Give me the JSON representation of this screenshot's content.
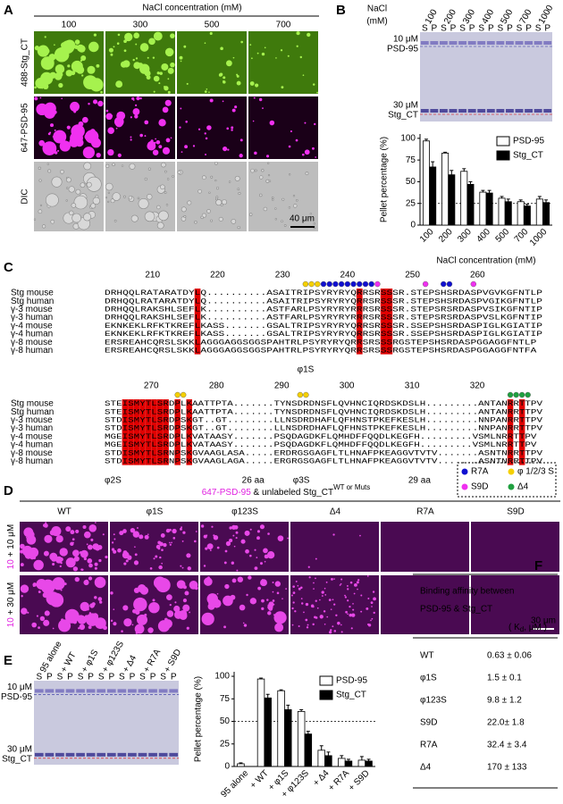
{
  "panel_a": {
    "letter": "A",
    "header": "NaCl concentration (mM)",
    "columns": [
      "100",
      "300",
      "500",
      "700"
    ],
    "rows": [
      "488-Stg_CT",
      "647-PSD-95",
      "DIC"
    ],
    "scale_bar": "40 μm"
  },
  "panel_b": {
    "letter": "B",
    "gel_header": [
      "NaCl",
      "(mM)"
    ],
    "lanes": [
      "100",
      "200",
      "300",
      "400",
      "500",
      "700",
      "1000"
    ],
    "lane_sub": [
      "S",
      "P"
    ],
    "band_top": [
      "10 μM",
      "PSD-95"
    ],
    "band_bottom": [
      "30 μM",
      "Stg_CT"
    ]
  },
  "panel_c": {
    "letter": "C",
    "blocks": [
      {
        "ruler": [
          "210",
          "220",
          "230",
          "240",
          "250",
          "260"
        ],
        "names": [
          "Stg mouse",
          "Stg human",
          "γ-3 mouse",
          "γ-3 human",
          "γ-4 mouse",
          "γ-4 human",
          "γ-8 mouse",
          "γ-8 human"
        ],
        "sequences": [
          "DRHQQLRATARATDYLQ..........ASAITRIPSYRYRYQRRSRSSSR.STEPSHSRDASPVGVKGFNTLP",
          "DRHQQLRATARATDYLQ..........ASAITRIPSYRYRYQRRSRSSSR.STEPSHSRDASPVGIKGFNTLP",
          "DRHQQLRAKSHLSEFLK..........ASTFARLPSYRYRYRRRSRSSSR.STEPSRSRDASPVSIKGFNTIP",
          "DRHQQLRAKSHLSEFLK..........ASTFARLPSYRYRYRRRSRSSSR.STEPSRSRDASPVSLKGFNTIP",
          "EKNKEKLRFKTKREFLKASS.......GSALTRIPSYRYRYQRRSRSSSR.SSEPSHSRDASPIGLKGIATIP",
          "EKNKEKLRFKTKREFLKASS.......GSALTRIPSYRYRYQRRSRSSSR.SSEPSHSRDASPIGLKGIATIP",
          "ERSREAHCQRSLSKKLAGGGAGGSGGSPAHTRLPSYRYRYQRRSRSSSRGSTEPSHSRDASPGGAGGFNTLP",
          "ERSREAHCQRSLSKKLAGGGAGGSGGSPAHTRLPSYRYRYQRRSRSSSRGSTEPSHSRDASPGGAGGFNTFA"
        ],
        "annotations": [
          "φ1S"
        ]
      },
      {
        "ruler": [
          "270",
          "280",
          "290",
          "300",
          "310",
          "320"
        ],
        "names": [
          "Stg mouse",
          "Stg human",
          "γ-3 mouse",
          "γ-3 human",
          "γ-4 mouse",
          "γ-4 human",
          "γ-8 mouse",
          "γ-8 human"
        ],
        "sequences": [
          "STEISMYTLSRDPLKAATTPTA.......TYNSDRDNSFLQVHNCIQRDSKDSLH.........ANTANRRTTPV",
          "STEISMYTLSRDPLKAATTPTA.......TYNSDRDNSFLQVHNCIQRDSKDSLH.........ANTANRRTTPV",
          "STDISMYTLSRDPSKGT..GT........LLNSDRDHAFLQFHNSTPKEFKESLH.........NNPANRRTTPV",
          "STDISMYTLSRDPSKGT..GT........LLNSDRDHAFLQFHNSTPKEFKESLH.........NNPANRRTTPV",
          "MGEISMYTLSRDPLKVATAASY.......PSQDAGDKFLQMHDFFQQDLKEGFH.........VSMLNRRTTPV",
          "MGEISMYTLSRDPLKVATAASY.......PSQDAGDKFLQMHDFFQQDLKEGFH.........VSMLNRRTTPV",
          "STDISMYTLSRNPSKGVAAGLASA.....ERDRGSGAGFLTLHNAFPKEAGGVTVTV.......ASNTNRRTTPV",
          "STDISMYTLSRNPSKGVAAGLAGA.....ERGRGSGAGFLTLHNAFPKEAGGVTVTV.......ASNTNRRTTPV"
        ],
        "annotations": [
          "φ2S",
          "26 aa",
          "φ3S",
          "29 aa"
        ]
      }
    ],
    "legend": [
      "R7A",
      "φ 1/2/3 S",
      "S9D",
      "Δ4"
    ]
  },
  "panel_d": {
    "letter": "D",
    "title": [
      "647-PSD-95",
      " & unlabeled Stg_CT"
    ],
    "title_sup": "WT or Muts",
    "columns": [
      "WT",
      "φ1S",
      "φ123S",
      "Δ4",
      "R7A",
      "S9D"
    ],
    "rows": [
      [
        "10",
        " + 10 μM"
      ],
      [
        "10",
        " + 30 μM"
      ]
    ],
    "scale_bar": "30 μm"
  },
  "panel_e": {
    "letter": "E",
    "lanes": [
      "95 alone",
      "+ WT",
      "+ φ1S",
      "+ φ123S",
      "+ Δ4",
      "+ R7A",
      "+ S9D"
    ],
    "lane_sub": [
      "S",
      "P"
    ],
    "band_top": [
      "10 μM",
      "PSD-95"
    ],
    "band_bottom": [
      "30 μM",
      "Stg_CT"
    ]
  },
  "panel_f": {
    "letter": "F",
    "title": [
      "Binding affinity between",
      "PSD-95 & Stg_CT"
    ],
    "unit": [
      "( K",
      "d",
      ", μM )"
    ],
    "rows": [
      [
        "WT",
        "0.63 ± 0.06"
      ],
      [
        "φ1S",
        "1.5 ± 0.1"
      ],
      [
        "φ123S",
        "9.8 ± 1.2"
      ],
      [
        "S9D",
        "22.0± 1.8"
      ],
      [
        "R7A",
        "32.4 ± 3.4"
      ],
      [
        "Δ4",
        "170 ± 133"
      ]
    ]
  },
  "chart_data": [
    {
      "type": "bar",
      "x_label": "NaCl concentration (mM)",
      "y_label": "Pellet percentage (%)",
      "categories": [
        "100",
        "200",
        "300",
        "400",
        "500",
        "700",
        "1000"
      ],
      "series": [
        {
          "name": "PSD-95",
          "color": "#ffffff",
          "values": [
            97,
            83,
            62,
            38,
            31,
            27,
            30
          ],
          "errors": [
            2,
            1,
            3,
            2,
            2,
            2,
            3
          ]
        },
        {
          "name": "Stg_CT",
          "color": "#000000",
          "values": [
            67,
            58,
            47,
            37,
            27,
            22,
            26
          ],
          "errors": [
            6,
            5,
            3,
            3,
            3,
            2,
            3
          ]
        }
      ],
      "ylim": [
        0,
        105
      ],
      "yticks": [
        0,
        25,
        50,
        75,
        100
      ],
      "reference_line": 25
    },
    {
      "type": "bar",
      "y_label": "Pellet percentage (%)",
      "categories": [
        "95 alone",
        "+ WT",
        "+ φ1S",
        "+ φ123S",
        "+ Δ4",
        "+ R7A",
        "+ S9D"
      ],
      "series": [
        {
          "name": "PSD-95",
          "color": "#ffffff",
          "values": [
            3,
            97,
            84,
            61,
            18,
            9,
            7
          ],
          "errors": [
            1,
            1,
            1,
            2,
            5,
            3,
            4
          ]
        },
        {
          "name": "Stg_CT",
          "color": "#000000",
          "values": [
            null,
            76,
            63,
            36,
            12,
            6,
            6
          ],
          "errors": [
            null,
            4,
            5,
            3,
            4,
            2,
            2
          ]
        }
      ],
      "ylim": [
        0,
        105
      ],
      "yticks": [
        0,
        25,
        50,
        75,
        100
      ],
      "reference_line": 50
    }
  ]
}
